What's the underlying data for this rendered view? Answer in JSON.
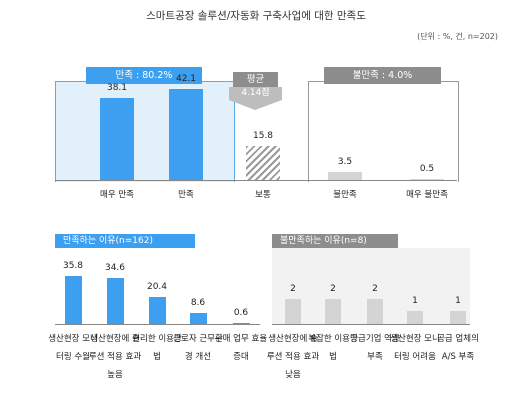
{
  "title": "스마트공장 솔루션/자동화 구축사업에 대한 만족도",
  "unit": "(단위 : %, 건, n=202)",
  "satisfied_header": "만족 : 80.2%",
  "dissatisfied_header": "불만족 : 4.0%",
  "average_label": "평균",
  "average_value": "4.14점",
  "colors": {
    "blue": "#3d9ff0",
    "grey": "#8d8d8d",
    "light_grey": "#d4d4d4",
    "sat_bg": "#e2f0fb"
  },
  "chart_data": [
    {
      "type": "bar",
      "categories": [
        "매우 만족",
        "만족",
        "보통",
        "불만족",
        "매우 불만족"
      ],
      "values": [
        38.1,
        42.1,
        15.8,
        3.5,
        0.5
      ],
      "ylim": [
        0,
        45
      ]
    },
    {
      "type": "bar",
      "title": "만족하는 이유(n=162)",
      "categories": [
        "생산현장 모니터링 수월",
        "생산현장에 솔루션 적용 효과 높음",
        "편리한 이용방법",
        "근로자 근무환경 개선",
        "구매 업무 효율 증대"
      ],
      "values": [
        35.8,
        34.6,
        20.4,
        8.6,
        0.6
      ],
      "ylim": [
        0,
        40
      ]
    },
    {
      "type": "bar",
      "title": "불만족하는 이유(n=8)",
      "categories": [
        "생산현장에 솔루션 적용 효과 낮음",
        "복잡한 이용방법",
        "공급기업 역량 부족",
        "생산현장 모니터링 어려움",
        "공급 업체의 A/S 부족"
      ],
      "values": [
        2,
        2,
        2,
        1,
        1
      ],
      "ylim": [
        0,
        3.2
      ]
    }
  ]
}
